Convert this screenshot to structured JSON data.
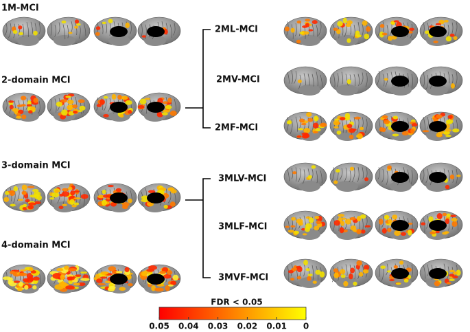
{
  "groups": {
    "left": [
      "1M-MCI",
      "2-domain MCI",
      "3-domain MCI",
      "4-domain MCI"
    ],
    "right": [
      "2ML-MCI",
      "2MV-MCI",
      "2MF-MCI",
      "3MLV-MCI",
      "3MLF-MCI",
      "3MVF-MCI"
    ]
  },
  "colorbar": {
    "title": "FDR < 0.05",
    "lim": [
      0.05,
      0
    ],
    "ticks": [
      0.05,
      0.04,
      0.03,
      0.02,
      0.01,
      0
    ],
    "colors": [
      "#ff0000",
      "#ffff00"
    ]
  }
}
